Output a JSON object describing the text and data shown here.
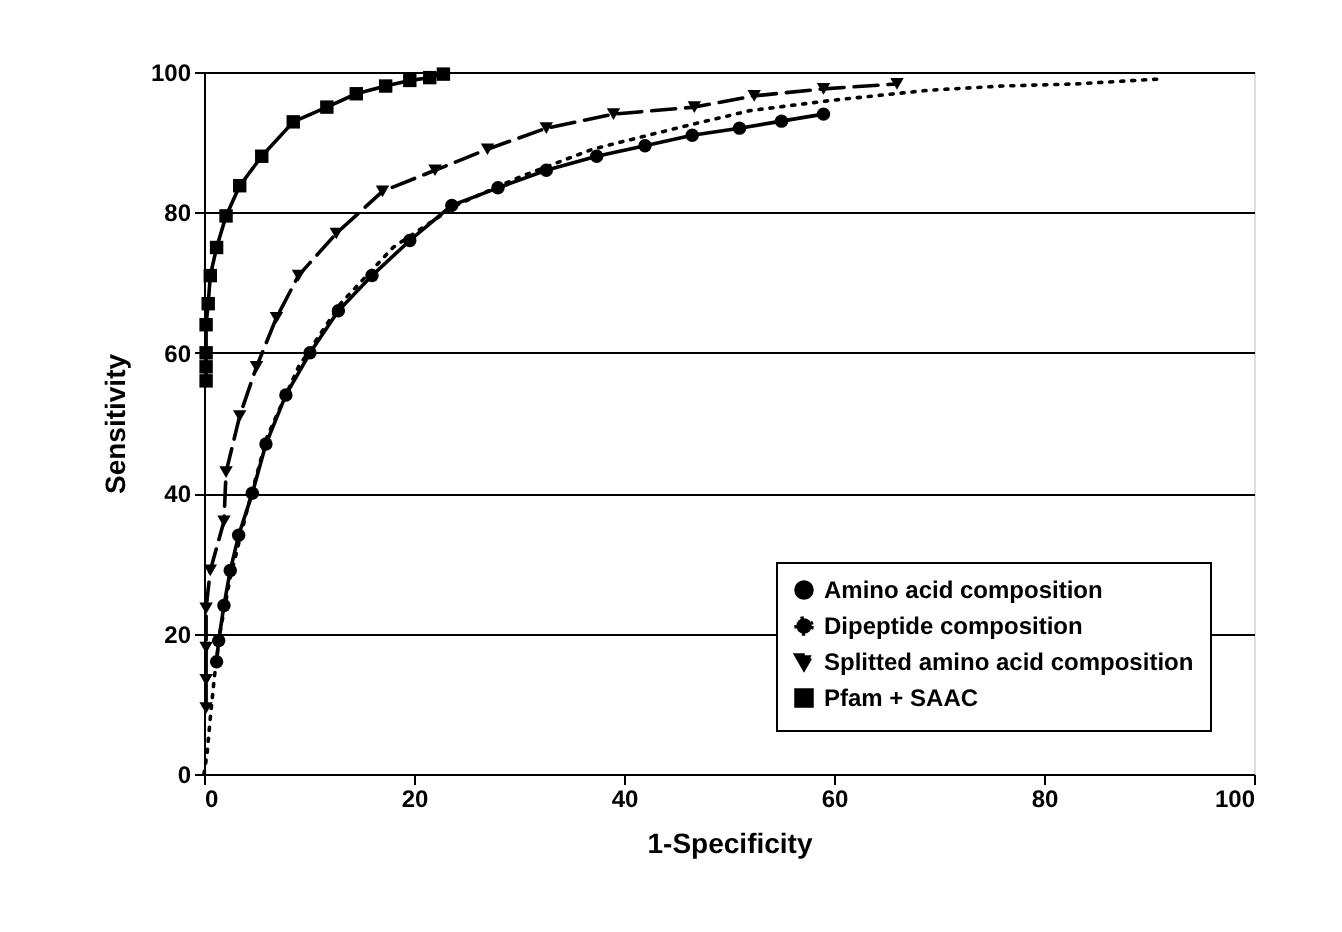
{
  "chart_data": {
    "type": "line",
    "xlabel": "1-Specificity",
    "ylabel": "Sensitivity",
    "xlim": [
      0,
      100
    ],
    "ylim": [
      0,
      100
    ],
    "xticks": [
      0,
      20,
      40,
      60,
      80,
      100
    ],
    "yticks": [
      0,
      20,
      40,
      60,
      80,
      100
    ],
    "grid": "y",
    "legend": "bottom right",
    "series": [
      {
        "name": "Amino acid composition",
        "color": "#000000",
        "marker": "circle",
        "line_style": "solid",
        "x": [
          1.2,
          1.4,
          1.9,
          2.5,
          3.3,
          4.6,
          5.9,
          7.8,
          10.1,
          12.8,
          16,
          19.6,
          23.6,
          28,
          32.6,
          37.4,
          42,
          46.5,
          51,
          55,
          59
        ],
        "values": [
          16,
          19,
          24,
          29,
          34,
          40,
          47,
          54,
          60,
          66,
          71,
          76,
          81,
          83.5,
          86,
          88,
          89.5,
          91,
          92,
          93,
          94
        ]
      },
      {
        "name": "Dipeptide composition",
        "color": "#000000",
        "marker": "none",
        "line_style": "dotted",
        "x": [
          0,
          0.3,
          0.6,
          1,
          1.5,
          2.5,
          4,
          6,
          9,
          13,
          18,
          24,
          30,
          37,
          45,
          52,
          60,
          69,
          76,
          83,
          91
        ],
        "values": [
          0,
          3,
          8,
          14,
          20,
          28,
          37,
          48,
          58,
          67,
          75,
          81,
          85,
          89,
          92,
          94.5,
          96,
          97.4,
          98,
          98.3,
          99
        ]
      },
      {
        "name": "Splitted amino acid composition",
        "color": "#000000",
        "marker": "triangle",
        "line_style": "dashed",
        "x": [
          0.2,
          0.2,
          0.2,
          0.2,
          0.6,
          1.9,
          2.1,
          3.4,
          5,
          6.9,
          9,
          12.6,
          17,
          22,
          27,
          32.6,
          39,
          46.7,
          52.4,
          59,
          66
        ],
        "values": [
          9.4,
          13.4,
          18,
          23.6,
          29,
          36,
          43,
          51,
          58,
          65,
          71,
          77,
          83,
          86,
          89,
          92,
          94,
          95,
          96.6,
          97.6,
          98.3
        ]
      },
      {
        "name": "Pfam + SAAC",
        "color": "#000000",
        "marker": "square",
        "line_style": "solid",
        "x": [
          0.2,
          0.2,
          0.2,
          0.2,
          0.4,
          0.6,
          1.2,
          2.1,
          3.4,
          5.5,
          8.5,
          11.7,
          14.5,
          17.3,
          19.6,
          21.5,
          22.8
        ],
        "values": [
          56,
          58,
          60,
          64,
          67,
          71,
          75,
          79.5,
          83.8,
          88,
          92.9,
          95,
          96.9,
          98,
          98.8,
          99.2,
          99.7
        ]
      }
    ]
  }
}
